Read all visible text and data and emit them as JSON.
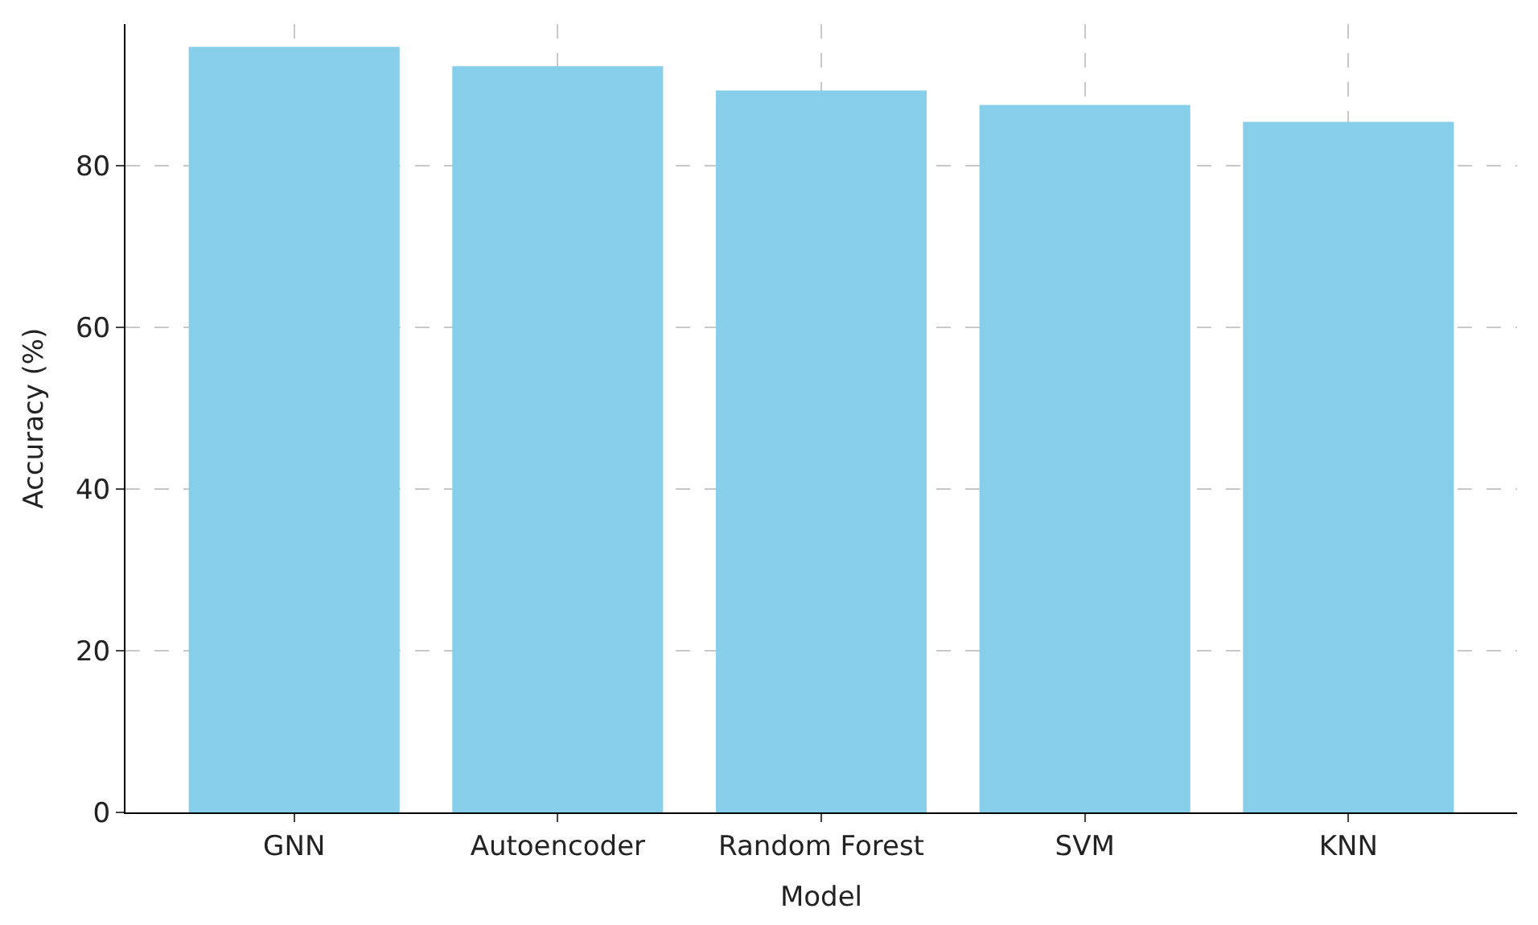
{
  "chart_data": {
    "type": "bar",
    "xlabel": "Model",
    "ylabel": "Accuracy (%)",
    "categories": [
      "GNN",
      "Autoencoder",
      "Random Forest",
      "SVM",
      "KNN"
    ],
    "series": [
      {
        "color": "#87ceeb",
        "values": [
          94.7,
          92.3,
          89.3,
          87.5,
          85.4
        ]
      }
    ],
    "ylim": [
      0,
      97.5
    ],
    "yticks": [
      0,
      20,
      40,
      60,
      80
    ],
    "grid": true,
    "line_style": "dashed"
  }
}
